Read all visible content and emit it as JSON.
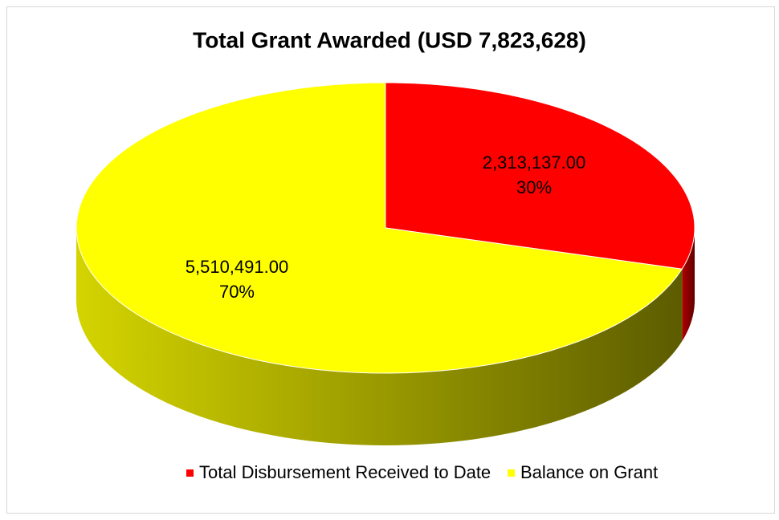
{
  "chart_data": {
    "type": "pie",
    "three_d": true,
    "title": "Total Grant Awarded (USD 7,823,628)",
    "categories": [
      "Total Disbursement Received to Date",
      "Balance on Grant"
    ],
    "values": [
      2313137,
      5510491
    ],
    "value_labels": [
      "2,313,137.00",
      "5,510,491.00"
    ],
    "percents": [
      30,
      70
    ],
    "percent_labels": [
      "30%",
      "70%"
    ],
    "colors": [
      "#ff0000",
      "#ffff00"
    ],
    "legend": "bottom"
  }
}
